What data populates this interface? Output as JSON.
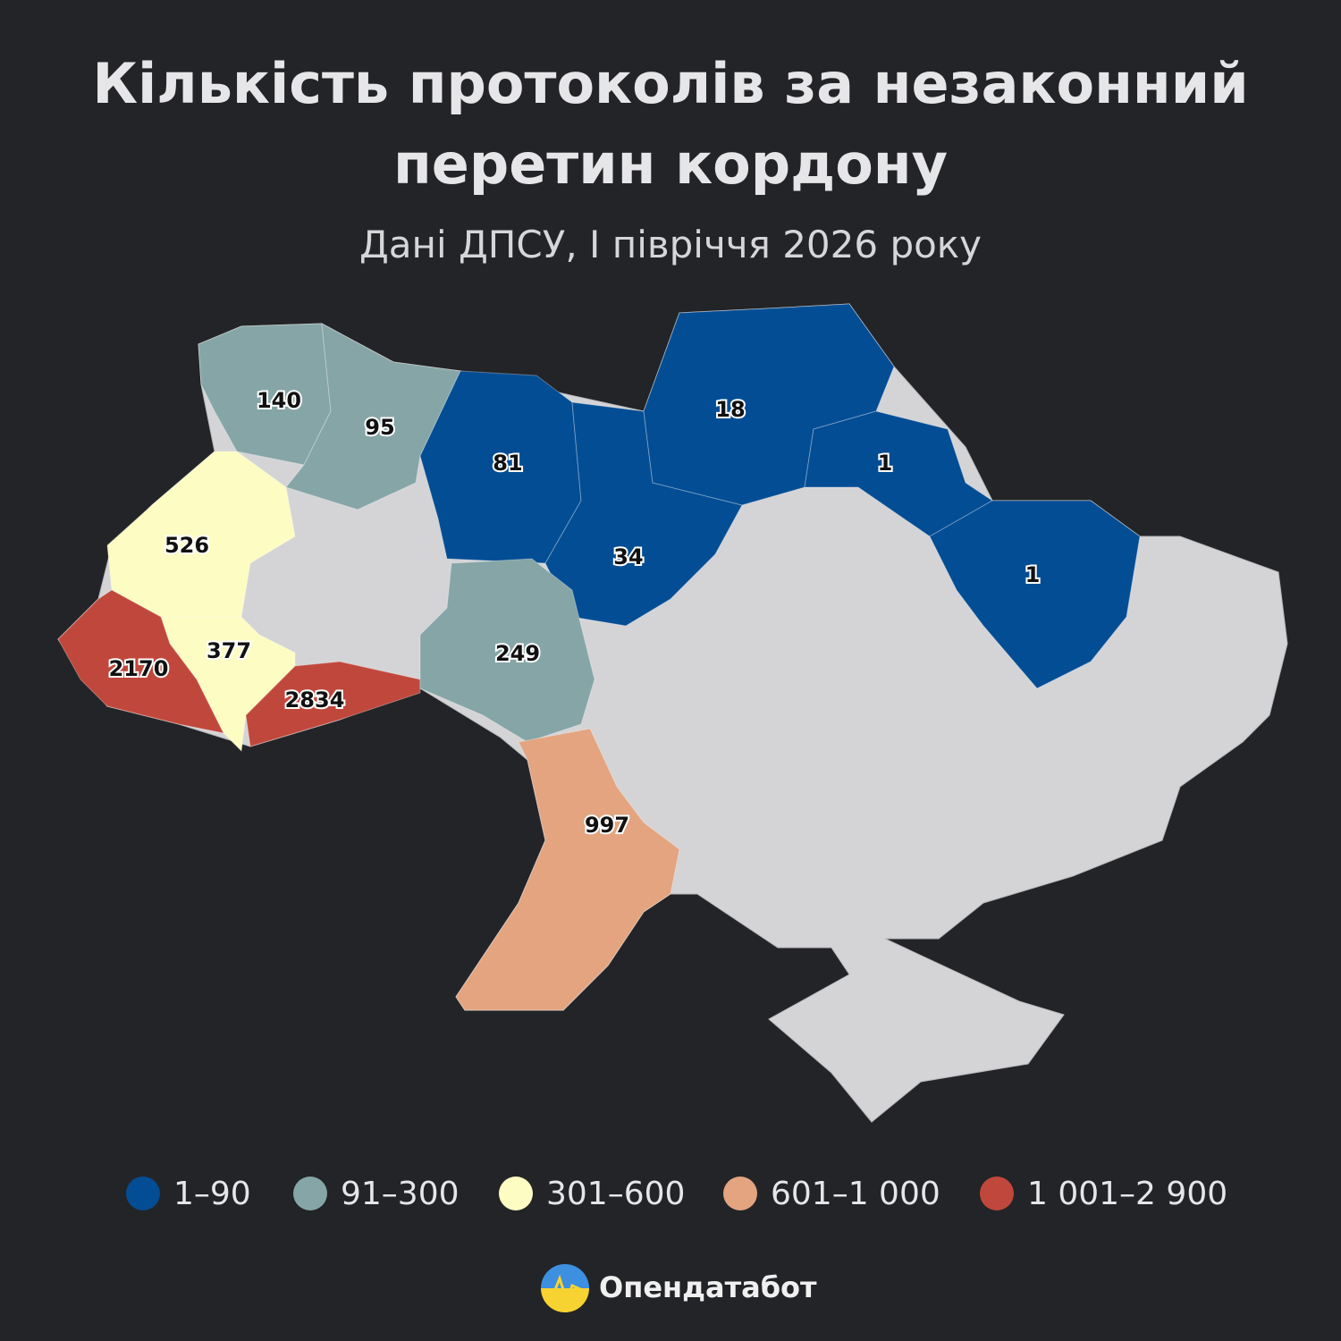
{
  "header": {
    "title_lines": [
      "Кількість протоколів за незаконний",
      "перетин кордону"
    ],
    "subtitle": "Дані ДПСУ, І півріччя 2026 року"
  },
  "map": {
    "base_color": "#d4d4d6",
    "regions": [
      {
        "value": 140,
        "color": "#86a5a6"
      },
      {
        "value": 95,
        "color": "#86a5a6"
      },
      {
        "value": 81,
        "color": "#034d94"
      },
      {
        "value": 34,
        "color": "#034d94"
      },
      {
        "value": 18,
        "color": "#034d94"
      },
      {
        "value": 1,
        "color": "#034d94"
      },
      {
        "value": 1,
        "color": "#034d94"
      },
      {
        "value": 526,
        "color": "#fdfcc2"
      },
      {
        "value": 377,
        "color": "#fdfcc2"
      },
      {
        "value": 2170,
        "color": "#c0473b"
      },
      {
        "value": 2834,
        "color": "#c0473b"
      },
      {
        "value": 249,
        "color": "#86a5a6"
      },
      {
        "value": 997,
        "color": "#e3a47f"
      }
    ]
  },
  "legend": [
    {
      "label": "1–90",
      "color": "#034d94"
    },
    {
      "label": "91–300",
      "color": "#86a5a6"
    },
    {
      "label": "301–600",
      "color": "#fdfcc2"
    },
    {
      "label": "601–1 000",
      "color": "#e3a47f"
    },
    {
      "label": "1 001–2 900",
      "color": "#c0473b"
    }
  ],
  "brand": "Опендатабот"
}
